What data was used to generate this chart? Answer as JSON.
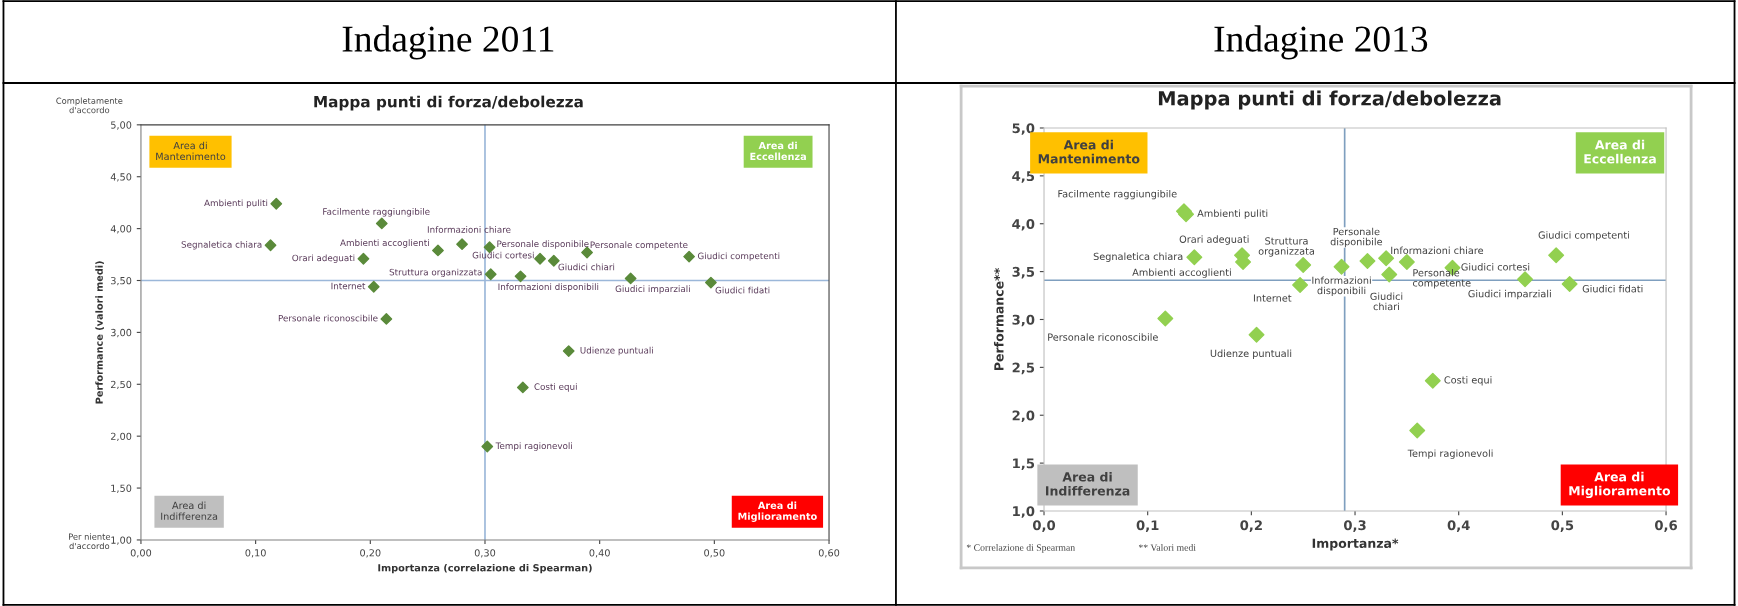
{
  "chart_data": [
    {
      "type": "scatter",
      "subtitle": "Indagine 2011",
      "title": "Mappa punti di forza/debolezza",
      "xlabel": "Importanza (correlazione di Spearman)",
      "ylabel": "Performance (valori medi)",
      "xlim": [
        0,
        0.6
      ],
      "ylim": [
        1,
        5
      ],
      "xticks": [
        {
          "value": 0,
          "label": "0,00"
        },
        {
          "value": 0.1,
          "label": "0,10"
        },
        {
          "value": 0.2,
          "label": "0,20"
        },
        {
          "value": 0.3,
          "label": "0,30"
        },
        {
          "value": 0.4,
          "label": "0,40"
        },
        {
          "value": 0.5,
          "label": "0,50"
        },
        {
          "value": 0.6,
          "label": "0,60"
        }
      ],
      "yticks": [
        {
          "value": 1,
          "label": "1,00"
        },
        {
          "value": 1.5,
          "label": "1,50"
        },
        {
          "value": 2,
          "label": "2,00"
        },
        {
          "value": 2.5,
          "label": "2,50"
        },
        {
          "value": 3,
          "label": "3,00"
        },
        {
          "value": 3.5,
          "label": "3,50"
        },
        {
          "value": 4,
          "label": "4,00"
        },
        {
          "value": 4.5,
          "label": "4,50"
        },
        {
          "value": 5,
          "label": "5,00"
        }
      ],
      "marker": "diamond",
      "grid": false,
      "legend": false,
      "series": [
        {
          "color": "#5a8a3a",
          "x": [
            0.118,
            0.21,
            0.113,
            0.259,
            0.28,
            0.194,
            0.305,
            0.203,
            0.214,
            0.302,
            0.304,
            0.348,
            0.36,
            0.331,
            0.389,
            0.427,
            0.478,
            0.497,
            0.373,
            0.333
          ],
          "values": [
            4.24,
            4.05,
            3.84,
            3.79,
            3.85,
            3.71,
            3.56,
            3.44,
            3.13,
            1.9,
            3.82,
            3.71,
            3.69,
            3.54,
            3.77,
            3.52,
            3.73,
            3.48,
            2.82,
            2.47
          ]
        }
      ],
      "ref_lines": [
        {
          "axis": "x",
          "value": 0.3,
          "color": "#9bb7d9"
        },
        {
          "axis": "y",
          "value": 3.5,
          "color": "#9bb7d9"
        }
      ],
      "annotations": [
        {
          "text": "Ambienti puliti",
          "x": 0.118,
          "y": 4.24
        },
        {
          "text": "Facilmente raggiungibile",
          "x": 0.21,
          "y": 4.05
        },
        {
          "text": "Segnaletica chiara",
          "x": 0.113,
          "y": 3.84
        },
        {
          "text": "Ambienti accoglienti",
          "x": 0.259,
          "y": 3.79
        },
        {
          "text": "Informazioni chiare",
          "x": 0.28,
          "y": 3.85
        },
        {
          "text": "Orari adeguati",
          "x": 0.194,
          "y": 3.71
        },
        {
          "text": "Struttura organizzata",
          "x": 0.305,
          "y": 3.56
        },
        {
          "text": "Internet",
          "x": 0.203,
          "y": 3.44
        },
        {
          "text": "Personale riconoscibile",
          "x": 0.214,
          "y": 3.13
        },
        {
          "text": "Tempi ragionevoli",
          "x": 0.302,
          "y": 1.9
        },
        {
          "text": "Personale disponibile",
          "x": 0.304,
          "y": 3.82
        },
        {
          "text": "Giudici cortesi",
          "x": 0.348,
          "y": 3.71
        },
        {
          "text": "Giudici chiari",
          "x": 0.36,
          "y": 3.69
        },
        {
          "text": "Informazioni disponibili",
          "x": 0.331,
          "y": 3.54
        },
        {
          "text": "Personale competente",
          "x": 0.389,
          "y": 3.77
        },
        {
          "text": "Giudici imparziali",
          "x": 0.427,
          "y": 3.52
        },
        {
          "text": "Giudici competenti",
          "x": 0.478,
          "y": 3.73
        },
        {
          "text": "Giudici fidati",
          "x": 0.497,
          "y": 3.48
        },
        {
          "text": "Udienze puntuali",
          "x": 0.373,
          "y": 2.82
        },
        {
          "text": "Costi equi",
          "x": 0.333,
          "y": 2.47
        },
        "Area di\nMantenimento",
        "Area di\nEccellenza",
        "Area di\nIndifferenza",
        "Area di\nMiglioramento",
        "Completamente\nd'accordo",
        "Per niente\nd'accordo"
      ]
    },
    {
      "type": "scatter",
      "subtitle": "Indagine 2013",
      "title": "Mappa punti di forza/debolezza",
      "xlabel": "Importanza*",
      "ylabel": "Performance**",
      "xlim": [
        0,
        0.6
      ],
      "ylim": [
        1,
        5
      ],
      "xticks": [
        {
          "value": 0,
          "label": "0,0"
        },
        {
          "value": 0.1,
          "label": "0,1"
        },
        {
          "value": 0.2,
          "label": "0,2"
        },
        {
          "value": 0.3,
          "label": "0,3"
        },
        {
          "value": 0.4,
          "label": "0,4"
        },
        {
          "value": 0.5,
          "label": "0,5"
        },
        {
          "value": 0.6,
          "label": "0,6"
        }
      ],
      "yticks": [
        {
          "value": 1,
          "label": "1,0"
        },
        {
          "value": 1.5,
          "label": "1,5"
        },
        {
          "value": 2,
          "label": "2,0"
        },
        {
          "value": 2.5,
          "label": "2,5"
        },
        {
          "value": 3,
          "label": "3,0"
        },
        {
          "value": 3.5,
          "label": "3,5"
        },
        {
          "value": 4,
          "label": "4,0"
        },
        {
          "value": 4.5,
          "label": "4,5"
        },
        {
          "value": 5,
          "label": "5,0"
        }
      ],
      "marker": "diamond",
      "grid": false,
      "legend": false,
      "series": [
        {
          "color": "#92d050",
          "x": [
            0.135,
            0.137,
            0.145,
            0.191,
            0.192,
            0.25,
            0.247,
            0.117,
            0.205,
            0.287,
            0.312,
            0.33,
            0.333,
            0.35,
            0.394,
            0.464,
            0.494,
            0.507,
            0.375,
            0.36
          ],
          "values": [
            4.13,
            4.1,
            3.65,
            3.67,
            3.6,
            3.57,
            3.36,
            3.01,
            2.84,
            3.55,
            3.61,
            3.64,
            3.47,
            3.6,
            3.54,
            3.42,
            3.67,
            3.37,
            2.36,
            1.84
          ]
        }
      ],
      "ref_lines": [
        {
          "axis": "x",
          "value": 0.29,
          "color": "#7f9fbf"
        },
        {
          "axis": "y",
          "value": 3.41,
          "color": "#7f9fbf"
        }
      ],
      "annotations": [
        {
          "text": "Facilmente raggiungibile",
          "x": 0.135,
          "y": 4.13
        },
        {
          "text": "Ambienti puliti",
          "x": 0.137,
          "y": 4.1
        },
        {
          "text": "Segnaletica chiara",
          "x": 0.145,
          "y": 3.65
        },
        {
          "text": "Orari adeguati",
          "x": 0.191,
          "y": 3.67
        },
        {
          "text": "Ambienti accoglienti",
          "x": 0.192,
          "y": 3.6
        },
        {
          "text": "Struttura\norganizzata",
          "x": 0.25,
          "y": 3.57
        },
        {
          "text": "Internet",
          "x": 0.247,
          "y": 3.36
        },
        {
          "text": "Personale riconoscibile",
          "x": 0.117,
          "y": 3.01
        },
        {
          "text": "Udienze puntuali",
          "x": 0.205,
          "y": 2.84
        },
        {
          "text": "Informazioni\ndisponibili",
          "x": 0.287,
          "y": 3.55
        },
        {
          "text": "Personale\ndisponibile",
          "x": 0.312,
          "y": 3.61
        },
        {
          "text": "Informazioni chiare",
          "x": 0.33,
          "y": 3.64
        },
        {
          "text": "Giudici\nchiari",
          "x": 0.333,
          "y": 3.47
        },
        {
          "text": "Personale\ncompetente",
          "x": 0.35,
          "y": 3.6
        },
        {
          "text": "Giudici cortesi",
          "x": 0.394,
          "y": 3.54
        },
        {
          "text": "Giudici imparziali",
          "x": 0.464,
          "y": 3.42
        },
        {
          "text": "Giudici competenti",
          "x": 0.494,
          "y": 3.67
        },
        {
          "text": "Giudici fidati",
          "x": 0.507,
          "y": 3.37
        },
        {
          "text": "Costi equi",
          "x": 0.375,
          "y": 2.36
        },
        {
          "text": "Tempi ragionevoli",
          "x": 0.36,
          "y": 1.84
        },
        "Area di\nMantenimento",
        "Area di\nEccellenza",
        "Area di\nIndifferenza",
        "Area di\nMiglioramento",
        "* Correlazione di Spearman",
        "** Valori medi"
      ]
    }
  ]
}
